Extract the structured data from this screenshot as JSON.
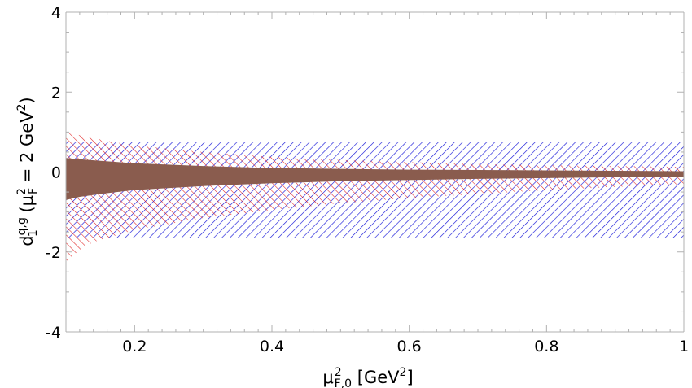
{
  "chart_data": {
    "type": "area",
    "xlabel": {
      "base": "μ",
      "sub": "F,0",
      "sup": "2",
      "unit_open": " [GeV",
      "unit_sup": "2",
      "unit_close": "]"
    },
    "ylabel": {
      "d": "d",
      "d_sub": "1",
      "d_sup": "q,g",
      "paren": " (μ",
      "mu_sub": "F",
      "mu_sup": "2",
      "mid": " = 2 GeV",
      "gev_sup": "2",
      "close": ")"
    },
    "xlim": [
      0.1,
      1.0
    ],
    "ylim": [
      -4,
      4
    ],
    "x_ticks": [
      {
        "value": 0.2,
        "label": "0.2"
      },
      {
        "value": 0.4,
        "label": "0.4"
      },
      {
        "value": 0.6,
        "label": "0.6"
      },
      {
        "value": 0.8,
        "label": "0.8"
      },
      {
        "value": 1.0,
        "label": "1"
      }
    ],
    "y_ticks": [
      {
        "value": 4,
        "label": "4"
      },
      {
        "value": 2,
        "label": "2"
      },
      {
        "value": 0,
        "label": "0"
      },
      {
        "value": -2,
        "label": "-2"
      },
      {
        "value": -4,
        "label": "-4"
      }
    ],
    "grid": false,
    "series": [
      {
        "style": "hatch-diagonal-down",
        "color": "#1a1ad9",
        "x": [
          0.1,
          1.0
        ],
        "upper": [
          0.75,
          0.75
        ],
        "lower": [
          -1.65,
          -1.65
        ]
      },
      {
        "style": "hatch-diagonal-up",
        "color": "#e02020",
        "x": [
          0.1,
          0.12,
          0.14,
          0.16,
          0.18,
          0.2,
          0.25,
          0.3,
          0.4,
          0.5,
          0.6,
          0.7,
          0.8,
          0.9,
          1.0
        ],
        "upper": [
          1.0,
          0.92,
          0.85,
          0.78,
          0.72,
          0.68,
          0.58,
          0.5,
          0.38,
          0.3,
          0.25,
          0.2,
          0.17,
          0.15,
          0.13
        ],
        "lower": [
          -2.25,
          -1.95,
          -1.75,
          -1.65,
          -1.55,
          -1.45,
          -1.3,
          -1.15,
          -0.95,
          -0.78,
          -0.65,
          -0.55,
          -0.45,
          -0.37,
          -0.3
        ]
      },
      {
        "style": "solid",
        "color": "#8a5c4e",
        "x": [
          0.1,
          0.12,
          0.15,
          0.2,
          0.3,
          0.4,
          0.5,
          0.6,
          0.7,
          0.8,
          0.9,
          1.0
        ],
        "upper": [
          0.35,
          0.32,
          0.28,
          0.22,
          0.15,
          0.1,
          0.08,
          0.06,
          0.05,
          0.04,
          0.03,
          0.02
        ],
        "lower": [
          -0.7,
          -0.62,
          -0.55,
          -0.45,
          -0.35,
          -0.28,
          -0.23,
          -0.2,
          -0.17,
          -0.15,
          -0.13,
          -0.12
        ]
      }
    ]
  }
}
